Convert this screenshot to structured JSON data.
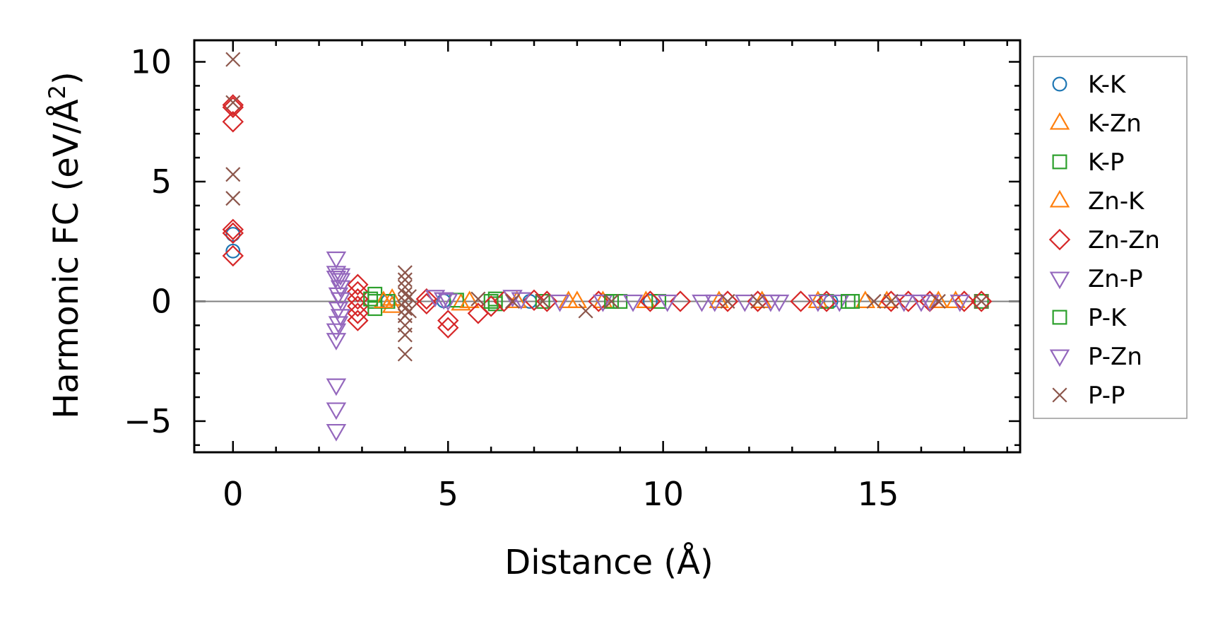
{
  "chart_data": {
    "type": "scatter",
    "title": "",
    "xlabel": "Distance (Å)",
    "ylabel_main": "Harmonic FC (eV/Å",
    "ylabel_sup": "2",
    "ylabel_close": ")",
    "xlim": [
      -0.9,
      18.3
    ],
    "ylim": [
      -6.3,
      10.9
    ],
    "xticks": [
      0,
      5,
      10,
      15
    ],
    "xtick_labels": [
      "0",
      "5",
      "10",
      "15"
    ],
    "yticks": [
      -5,
      0,
      5,
      10
    ],
    "ytick_labels": [
      "−5",
      "0",
      "5",
      "10"
    ],
    "zero_line": true,
    "legend_position": "outside-right",
    "series": [
      {
        "name": "K-K",
        "marker": "circle",
        "color": "#1f77b4",
        "points": [
          [
            0,
            2.1
          ],
          [
            0,
            2.8
          ],
          [
            3.6,
            0.0
          ],
          [
            4.9,
            0.02
          ],
          [
            6.9,
            0.0
          ],
          [
            9.7,
            0.0
          ],
          [
            13.9,
            0.0
          ]
        ]
      },
      {
        "name": "K-Zn",
        "marker": "triangle-up",
        "color": "#ff7f0e",
        "points": [
          [
            3.7,
            0.1
          ],
          [
            3.7,
            -0.2
          ],
          [
            5.3,
            -0.1
          ],
          [
            6.6,
            0.0
          ],
          [
            7.8,
            0.0
          ],
          [
            8.6,
            0.0
          ],
          [
            9.6,
            0.0
          ],
          [
            11.3,
            0.0
          ],
          [
            13.6,
            0.0
          ],
          [
            14.7,
            0.0
          ],
          [
            16.4,
            0.0
          ],
          [
            16.8,
            0.0
          ]
        ]
      },
      {
        "name": "K-P",
        "marker": "square",
        "color": "#2ca02c",
        "points": [
          [
            3.3,
            0.3
          ],
          [
            3.3,
            -0.3
          ],
          [
            3.3,
            0.0
          ],
          [
            3.6,
            0.0
          ],
          [
            5.2,
            0.05
          ],
          [
            6.1,
            0.1
          ],
          [
            6.1,
            -0.1
          ],
          [
            7.2,
            0.0
          ],
          [
            9.0,
            0.0
          ],
          [
            9.9,
            0.0
          ],
          [
            13.8,
            0.0
          ],
          [
            14.4,
            0.0
          ],
          [
            17.4,
            0.0
          ]
        ]
      },
      {
        "name": "Zn-K",
        "marker": "triangle-up",
        "color": "#ff7f0e",
        "points": [
          [
            3.5,
            0.0
          ],
          [
            5.5,
            0.0
          ],
          [
            8.0,
            0.0
          ],
          [
            12.3,
            0.0
          ],
          [
            15.2,
            0.0
          ]
        ]
      },
      {
        "name": "Zn-Zn",
        "marker": "diamond",
        "color": "#d62728",
        "points": [
          [
            0,
            8.2
          ],
          [
            0,
            8.1
          ],
          [
            0,
            7.5
          ],
          [
            0,
            3.0
          ],
          [
            0,
            2.85
          ],
          [
            0,
            1.9
          ],
          [
            2.9,
            0.7
          ],
          [
            2.9,
            0.4
          ],
          [
            2.9,
            0.1
          ],
          [
            2.9,
            -0.2
          ],
          [
            2.9,
            -0.5
          ],
          [
            2.9,
            -0.8
          ],
          [
            4.5,
            0.1
          ],
          [
            4.5,
            -0.1
          ],
          [
            5.0,
            -1.1
          ],
          [
            5.0,
            -0.8
          ],
          [
            5.7,
            -0.5
          ],
          [
            6.0,
            -0.2
          ],
          [
            6.3,
            0.0
          ],
          [
            7.0,
            0.05
          ],
          [
            7.3,
            0.0
          ],
          [
            8.5,
            0.0
          ],
          [
            9.7,
            0.0
          ],
          [
            10.4,
            0.0
          ],
          [
            11.5,
            0.0
          ],
          [
            12.2,
            0.0
          ],
          [
            13.2,
            0.0
          ],
          [
            13.8,
            0.0
          ],
          [
            15.3,
            0.0
          ],
          [
            15.7,
            0.0
          ],
          [
            16.2,
            0.0
          ],
          [
            17.0,
            0.0
          ],
          [
            17.4,
            0.0
          ]
        ]
      },
      {
        "name": "Zn-P",
        "marker": "triangle-down",
        "color": "#9467bd",
        "points": [
          [
            2.4,
            1.8
          ],
          [
            2.4,
            1.2
          ],
          [
            2.4,
            1.0
          ],
          [
            2.5,
            0.9
          ],
          [
            2.5,
            0.6
          ],
          [
            2.45,
            0.3
          ],
          [
            2.5,
            -0.6
          ],
          [
            2.4,
            -1.2
          ],
          [
            2.4,
            -1.6
          ],
          [
            2.4,
            -3.5
          ],
          [
            2.4,
            -4.5
          ],
          [
            2.4,
            -5.4
          ],
          [
            4.7,
            0.2
          ],
          [
            4.9,
            0.1
          ],
          [
            5.0,
            0.05
          ],
          [
            6.5,
            0.2
          ],
          [
            6.7,
            0.1
          ],
          [
            7.6,
            0.0
          ],
          [
            8.6,
            0.0
          ],
          [
            9.3,
            0.0
          ],
          [
            10.9,
            0.0
          ],
          [
            11.9,
            0.0
          ],
          [
            12.5,
            0.0
          ],
          [
            14.1,
            0.0
          ],
          [
            15.6,
            0.0
          ],
          [
            16.2,
            0.0
          ],
          [
            16.9,
            0.0
          ]
        ]
      },
      {
        "name": "P-K",
        "marker": "square",
        "color": "#2ca02c",
        "points": [
          [
            3.2,
            0.1
          ],
          [
            6.0,
            0.0
          ],
          [
            8.8,
            0.0
          ],
          [
            14.3,
            0.0
          ]
        ]
      },
      {
        "name": "P-Zn",
        "marker": "triangle-down",
        "color": "#9467bd",
        "points": [
          [
            2.45,
            -0.3
          ],
          [
            2.5,
            0.1
          ],
          [
            2.45,
            -0.9
          ],
          [
            2.5,
            1.1
          ],
          [
            10.1,
            0.0
          ],
          [
            11.2,
            0.0
          ],
          [
            12.7,
            0.0
          ],
          [
            13.6,
            0.0
          ],
          [
            16.0,
            0.0
          ]
        ]
      },
      {
        "name": "P-P",
        "marker": "cross",
        "color": "#8c564b",
        "points": [
          [
            0,
            10.1
          ],
          [
            0,
            8.3
          ],
          [
            0,
            5.3
          ],
          [
            0,
            4.3
          ],
          [
            4.0,
            1.2
          ],
          [
            4.0,
            0.9
          ],
          [
            4.0,
            0.6
          ],
          [
            4.0,
            0.3
          ],
          [
            4.0,
            0.0
          ],
          [
            4.0,
            -0.3
          ],
          [
            4.0,
            -0.6
          ],
          [
            4.0,
            -1.0
          ],
          [
            4.0,
            -1.4
          ],
          [
            4.0,
            -2.2
          ],
          [
            4.1,
            0.2
          ],
          [
            4.1,
            -0.4
          ],
          [
            5.7,
            0.1
          ],
          [
            6.5,
            0.0
          ],
          [
            7.2,
            0.0
          ],
          [
            8.2,
            -0.4
          ],
          [
            8.8,
            0.0
          ],
          [
            11.5,
            0.0
          ],
          [
            12.2,
            0.0
          ],
          [
            14.9,
            0.0
          ],
          [
            15.3,
            0.0
          ],
          [
            16.4,
            0.0
          ],
          [
            17.4,
            0.0
          ]
        ]
      }
    ]
  }
}
